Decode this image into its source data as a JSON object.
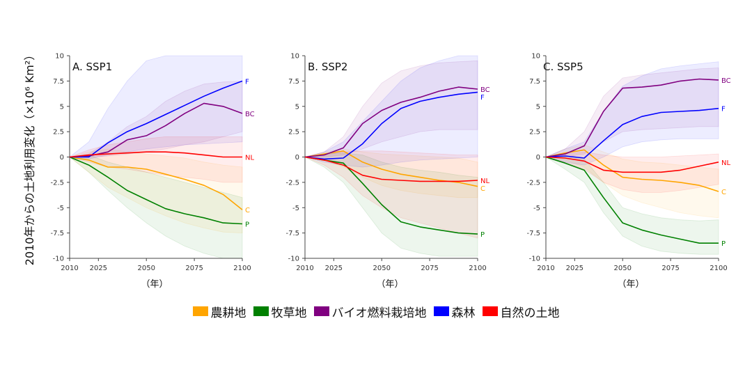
{
  "ylabel": "2010年からの土地利用変化（×10⁶ Km²）",
  "colors": {
    "cropland": "#FFA500",
    "pasture": "#008000",
    "bioenergy": "#800080",
    "forest": "#0000FF",
    "natural": "#FF0000"
  },
  "legend": [
    {
      "key": "cropland",
      "label": "農耕地"
    },
    {
      "key": "pasture",
      "label": "牧草地"
    },
    {
      "key": "bioenergy",
      "label": "バイオ燃料栽培地"
    },
    {
      "key": "forest",
      "label": "森林"
    },
    {
      "key": "natural",
      "label": "自然の土地"
    }
  ],
  "chart_data": [
    {
      "type": "line",
      "title": "A. SSP1",
      "xlabel": "（年）",
      "xlim": [
        2010,
        2100
      ],
      "ylim": [
        -10,
        10
      ],
      "xticks": [
        "2010",
        "2025",
        "2050",
        "2075",
        "2100"
      ],
      "yticks": [
        "10",
        "7.5",
        "5",
        "2.5",
        "0",
        "-2.5",
        "-5",
        "-7.5",
        "-10"
      ],
      "x": [
        2010,
        2020,
        2030,
        2040,
        2050,
        2060,
        2070,
        2080,
        2090,
        2100
      ],
      "series": [
        {
          "key": "cropland",
          "end_label": "C",
          "values": [
            0,
            -0.3,
            -1.0,
            -1.0,
            -1.2,
            -1.7,
            -2.2,
            -2.8,
            -3.7,
            -5.2
          ],
          "lower": [
            0,
            -1.5,
            -3.0,
            -4.0,
            -5.0,
            -5.8,
            -6.5,
            -7.0,
            -7.4,
            -7.5
          ],
          "upper": [
            0,
            0.5,
            0.8,
            0.5,
            0.3,
            0.1,
            -0.1,
            -0.5,
            -0.8,
            -1.0
          ]
        },
        {
          "key": "pasture",
          "end_label": "P",
          "values": [
            0,
            -0.8,
            -2.0,
            -3.3,
            -4.2,
            -5.1,
            -5.6,
            -6.0,
            -6.5,
            -6.6
          ],
          "lower": [
            0,
            -1.5,
            -3.3,
            -5.0,
            -6.5,
            -7.8,
            -8.8,
            -9.5,
            -10,
            -10
          ],
          "upper": [
            0,
            0.2,
            -0.5,
            -1.0,
            -1.5,
            -2.0,
            -2.5,
            -3.0,
            -3.5,
            -4.0
          ]
        },
        {
          "key": "bioenergy",
          "end_label": "BC",
          "values": [
            0,
            0.1,
            0.5,
            1.7,
            2.1,
            3.1,
            4.3,
            5.3,
            5.0,
            4.3
          ],
          "lower": [
            0,
            0,
            0.1,
            0.3,
            0.5,
            0.8,
            1.2,
            1.5,
            2.0,
            2.5
          ],
          "upper": [
            0,
            0.3,
            1.5,
            3.0,
            4.0,
            5.5,
            6.5,
            7.2,
            7.4,
            7.5
          ]
        },
        {
          "key": "forest",
          "end_label": "F",
          "values": [
            0,
            0,
            1.4,
            2.5,
            3.3,
            4.2,
            5.1,
            6.0,
            6.8,
            7.5
          ],
          "lower": [
            0,
            -0.2,
            0.2,
            0.5,
            0.8,
            1.0,
            1.2,
            1.3,
            1.4,
            1.5
          ],
          "upper": [
            0,
            1.5,
            4.8,
            7.5,
            9.5,
            10,
            10,
            10,
            10,
            10
          ]
        },
        {
          "key": "natural",
          "end_label": "NL",
          "values": [
            0,
            0.2,
            0.3,
            0.4,
            0.5,
            0.5,
            0.4,
            0.2,
            0,
            0
          ],
          "lower": [
            0,
            -0.5,
            -1.0,
            -1.2,
            -1.5,
            -1.8,
            -2.0,
            -2.2,
            -2.5,
            -2.5
          ],
          "upper": [
            0,
            0.7,
            1.2,
            1.5,
            1.8,
            2.0,
            2.0,
            2.0,
            2.0,
            2.0
          ]
        }
      ]
    },
    {
      "type": "line",
      "title": "B. SSP2",
      "xlabel": "（年）",
      "xlim": [
        2010,
        2100
      ],
      "ylim": [
        -10,
        10
      ],
      "xticks": [
        "2010",
        "2025",
        "2050",
        "2075",
        "2100"
      ],
      "yticks": [
        "10",
        "7.5",
        "5",
        "2.5",
        "0",
        "-2.5",
        "-5",
        "-7.5",
        "-10"
      ],
      "x": [
        2010,
        2020,
        2030,
        2040,
        2050,
        2060,
        2070,
        2080,
        2090,
        2100
      ],
      "series": [
        {
          "key": "cropland",
          "end_label": "C",
          "values": [
            0,
            0.3,
            0.6,
            -0.5,
            -1.2,
            -1.7,
            -2.0,
            -2.3,
            -2.5,
            -2.9
          ],
          "lower": [
            0,
            -0.3,
            -1.0,
            -2.0,
            -2.8,
            -3.3,
            -3.6,
            -3.8,
            -4.0,
            -4.0
          ],
          "upper": [
            0,
            0.5,
            0.8,
            0.5,
            0.3,
            0.2,
            0.1,
            0,
            -0.1,
            -0.5
          ]
        },
        {
          "key": "pasture",
          "end_label": "P",
          "values": [
            0,
            -0.3,
            -0.6,
            -2.6,
            -4.7,
            -6.4,
            -6.9,
            -7.2,
            -7.5,
            -7.6
          ],
          "lower": [
            0,
            -1.0,
            -2.5,
            -5.0,
            -7.5,
            -9.0,
            -9.5,
            -9.8,
            -9.8,
            -9.8
          ],
          "upper": [
            0,
            0.3,
            0.4,
            0.2,
            -0.5,
            -1.0,
            -1.3,
            -1.5,
            -1.8,
            -2.0
          ]
        },
        {
          "key": "bioenergy",
          "end_label": "BC",
          "values": [
            0,
            0.2,
            0.9,
            3.3,
            4.6,
            5.4,
            5.9,
            6.5,
            6.9,
            6.7
          ],
          "lower": [
            0,
            0,
            0.2,
            0.8,
            1.5,
            2.0,
            2.5,
            2.7,
            2.7,
            2.7
          ],
          "upper": [
            0,
            0.5,
            2.0,
            5.0,
            7.3,
            8.5,
            9.0,
            9.3,
            9.4,
            9.5
          ]
        },
        {
          "key": "forest",
          "end_label": "F",
          "values": [
            0,
            -0.2,
            -0.1,
            1.3,
            3.3,
            4.8,
            5.5,
            5.9,
            6.2,
            6.4
          ],
          "lower": [
            0,
            -0.5,
            -0.8,
            -1.0,
            -0.8,
            -0.5,
            -0.3,
            -0.2,
            -0.1,
            0
          ],
          "upper": [
            0,
            0.5,
            1.5,
            3.5,
            5.5,
            7.5,
            8.8,
            9.5,
            10,
            10
          ]
        },
        {
          "key": "natural",
          "end_label": "NL",
          "values": [
            0,
            -0.3,
            -0.8,
            -1.8,
            -2.2,
            -2.3,
            -2.4,
            -2.4,
            -2.4,
            -2.3
          ],
          "lower": [
            0,
            -0.8,
            -2.0,
            -3.8,
            -5.0,
            -6.0,
            -6.5,
            -7.0,
            -7.5,
            -8.0
          ],
          "upper": [
            0,
            0.2,
            0.5,
            0.6,
            0.6,
            0.5,
            0.4,
            0.3,
            0.2,
            0.2
          ]
        }
      ]
    },
    {
      "type": "line",
      "title": "C. SSP5",
      "xlabel": "（年）",
      "xlim": [
        2010,
        2100
      ],
      "ylim": [
        -10,
        10
      ],
      "xticks": [
        "2010",
        "2025",
        "2050",
        "2075",
        "2100"
      ],
      "yticks": [
        "10",
        "7.5",
        "5",
        "2.5",
        "0",
        "-2.5",
        "-5",
        "-7.5",
        "-10"
      ],
      "x": [
        2010,
        2020,
        2030,
        2040,
        2050,
        2060,
        2070,
        2080,
        2090,
        2100
      ],
      "series": [
        {
          "key": "cropland",
          "end_label": "C",
          "values": [
            0,
            0.4,
            0.7,
            -0.8,
            -2.0,
            -2.2,
            -2.3,
            -2.5,
            -2.8,
            -3.4
          ],
          "lower": [
            0,
            -0.3,
            -1.0,
            -2.5,
            -3.8,
            -4.5,
            -5.0,
            -5.5,
            -5.8,
            -6.0
          ],
          "upper": [
            0,
            0.8,
            1.2,
            0.5,
            -0.2,
            -0.5,
            -0.6,
            -0.8,
            -1.0,
            -1.2
          ]
        },
        {
          "key": "pasture",
          "end_label": "P",
          "values": [
            0,
            -0.6,
            -1.3,
            -4.0,
            -6.5,
            -7.2,
            -7.7,
            -8.1,
            -8.5,
            -8.5
          ],
          "lower": [
            0,
            -1.2,
            -2.5,
            -5.5,
            -7.8,
            -8.8,
            -9.3,
            -9.5,
            -9.6,
            -9.6
          ],
          "upper": [
            0,
            0,
            -0.2,
            -2.5,
            -5.0,
            -5.6,
            -6.0,
            -6.2,
            -6.3,
            -6.2
          ]
        },
        {
          "key": "bioenergy",
          "end_label": "BC",
          "values": [
            0,
            0.3,
            1.1,
            4.5,
            6.8,
            6.9,
            7.1,
            7.5,
            7.7,
            7.6
          ],
          "lower": [
            0,
            0,
            0.3,
            1.5,
            2.5,
            2.7,
            2.8,
            2.9,
            3.0,
            3.0
          ],
          "upper": [
            0,
            0.8,
            2.5,
            6.0,
            7.8,
            8.1,
            8.3,
            8.5,
            8.7,
            8.8
          ]
        },
        {
          "key": "forest",
          "end_label": "F",
          "values": [
            0,
            0.1,
            -0.1,
            1.6,
            3.2,
            4.0,
            4.4,
            4.5,
            4.6,
            4.8
          ],
          "lower": [
            0,
            -0.5,
            -0.8,
            0,
            1.0,
            1.5,
            1.7,
            1.8,
            1.8,
            1.8
          ],
          "upper": [
            0,
            0.8,
            1.5,
            4.5,
            7.0,
            8.0,
            8.7,
            9.0,
            9.2,
            9.4
          ]
        },
        {
          "key": "natural",
          "end_label": "NL",
          "values": [
            0,
            -0.1,
            -0.4,
            -1.3,
            -1.5,
            -1.5,
            -1.5,
            -1.3,
            -0.9,
            -0.5
          ],
          "lower": [
            0,
            -0.5,
            -1.2,
            -2.5,
            -3.2,
            -3.5,
            -3.5,
            -3.3,
            -3.0,
            -2.7
          ],
          "upper": [
            0,
            0.3,
            0.5,
            0.2,
            0,
            0,
            0,
            0.1,
            0.2,
            0.3
          ]
        }
      ]
    }
  ]
}
